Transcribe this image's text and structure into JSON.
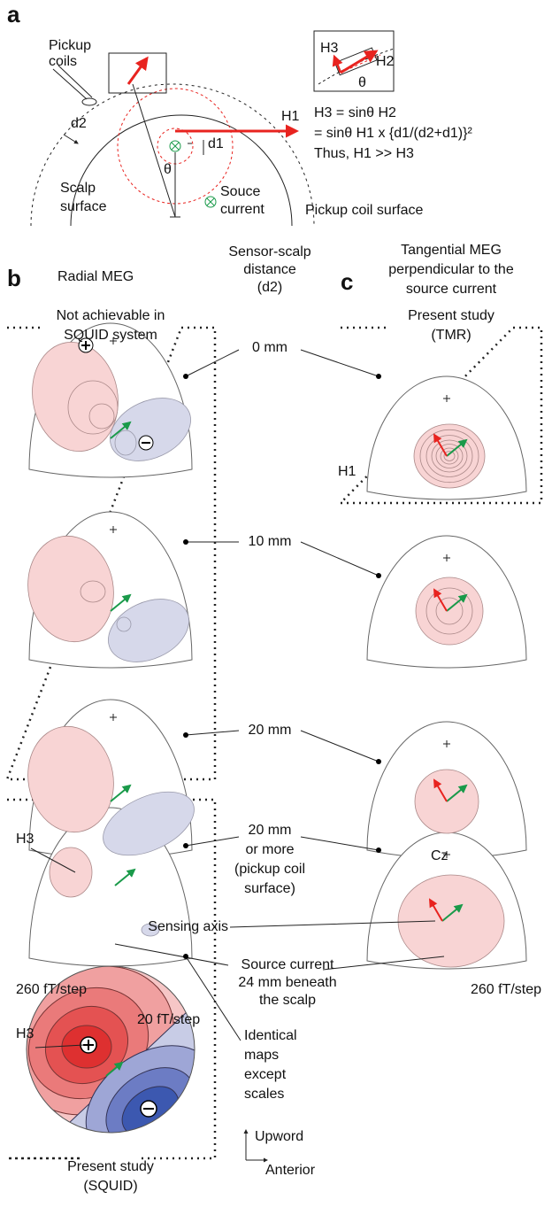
{
  "panel_a": {
    "label": "a",
    "pickup_coils": [
      "Pickup",
      "coils"
    ],
    "d2": "d2",
    "d1": "d1",
    "theta": "θ",
    "h1": "H1",
    "scalp_surface": [
      "Scalp",
      "surface"
    ],
    "source_current": [
      "Souce",
      "current"
    ],
    "pickup_coil_surface": "Pickup coil surface",
    "inset": {
      "h3": "H3",
      "h2": "H2",
      "theta": "θ"
    },
    "equations": [
      "H3 = sinθ H2",
      "= sinθ H1 x {d1/(d2+d1)}²",
      "Thus, H1 >> H3"
    ]
  },
  "panel_b": {
    "label": "b",
    "title": "Radial MEG",
    "box_label": [
      "Not achievable in",
      "SQUID system"
    ],
    "h3_labels": [
      "H3",
      "H3"
    ],
    "scale_radial": "260 fT/step",
    "scale_squid": "20 fT/step",
    "squid_label": [
      "Present study",
      "(SQUID)"
    ]
  },
  "distances": {
    "header": [
      "Sensor-scalp",
      "distance",
      "(d2)"
    ],
    "rows": [
      [
        "0 mm"
      ],
      [
        "10 mm"
      ],
      [
        "20 mm"
      ],
      [
        "20 mm",
        "or more",
        "(pickup coil",
        "surface)"
      ]
    ]
  },
  "panel_c": {
    "label": "c",
    "title": [
      "Tangential MEG",
      "perpendicular to the",
      "source current"
    ],
    "box_label": [
      "Present study",
      "(TMR)"
    ],
    "h1": "H1",
    "cz": "Cz",
    "scale": "260 fT/step"
  },
  "annotations": {
    "sensing_axis": "Sensing axis",
    "source_current": [
      "Source current",
      "24 mm beneath",
      "the scalp"
    ],
    "identical_maps": [
      "Identical",
      "maps",
      "except",
      "scales"
    ],
    "upword": "Upword",
    "anterior": "Anterior"
  }
}
